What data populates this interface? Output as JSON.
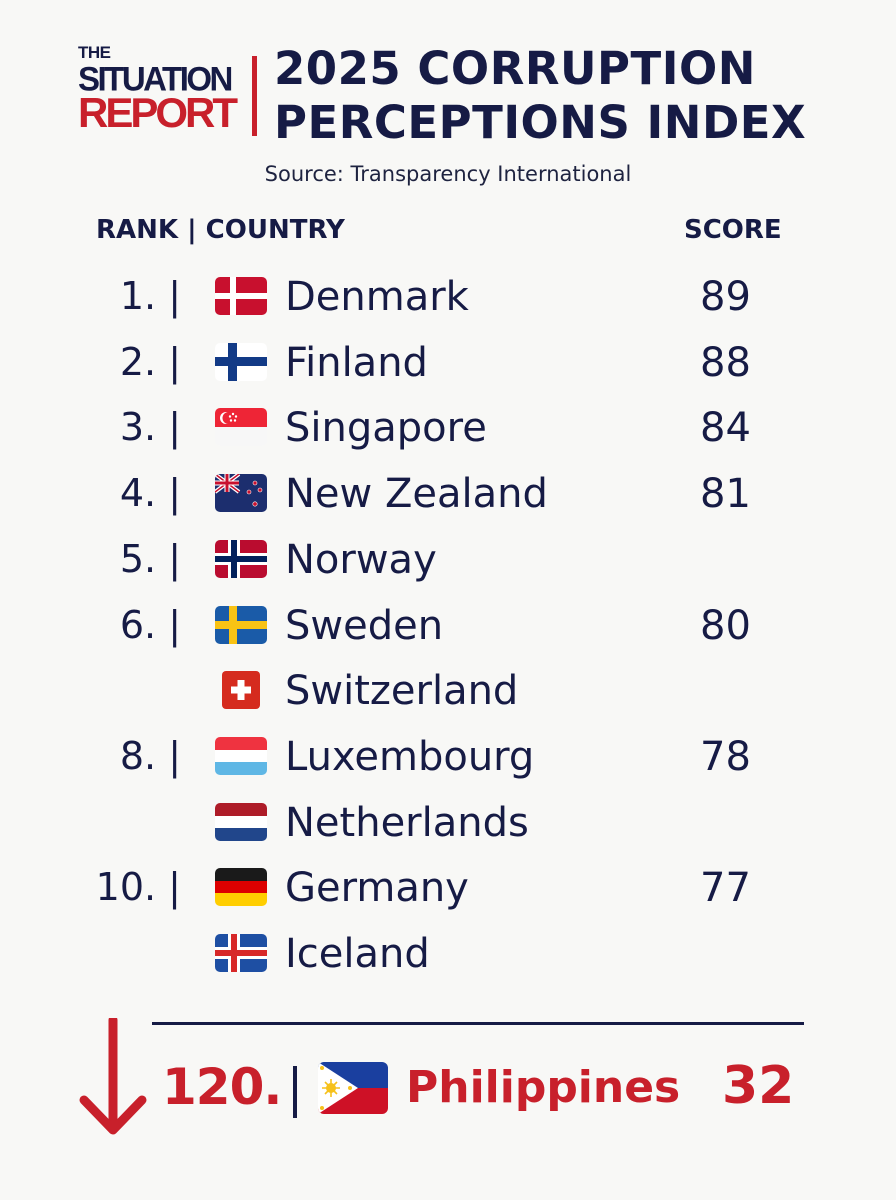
{
  "brand": {
    "line1": "THE",
    "line2": "SITUATION",
    "line3": "REPORT"
  },
  "title": {
    "line1": "2025 CORRUPTION",
    "line2": "PERCEPTIONS INDEX"
  },
  "source": "Source: Transparency International",
  "headers": {
    "left": "RANK | COUNTRY",
    "right": "SCORE"
  },
  "colors": {
    "navy": "#161b45",
    "red": "#c8202b",
    "background": "#f8f8f6"
  },
  "chart_data": {
    "type": "table",
    "columns": [
      "RANK",
      "COUNTRY",
      "SCORE"
    ],
    "rows": [
      {
        "rank": "1. |",
        "country": "Denmark",
        "flag": "flag-denmark",
        "score": "89"
      },
      {
        "rank": "2. |",
        "country": "Finland",
        "flag": "flag-finland",
        "score": "88"
      },
      {
        "rank": "3. |",
        "country": "Singapore",
        "flag": "flag-singapore",
        "score": "84"
      },
      {
        "rank": "4. |",
        "country": "New Zealand",
        "flag": "flag-new-zealand",
        "score": "81"
      },
      {
        "rank": "5. |",
        "country": "Norway",
        "flag": "flag-norway",
        "score": ""
      },
      {
        "rank": "6. |",
        "country": "Sweden",
        "flag": "flag-sweden",
        "score": "80"
      },
      {
        "rank": "",
        "country": "Switzerland",
        "flag": "flag-switzerland",
        "score": ""
      },
      {
        "rank": "8. |",
        "country": "Luxembourg",
        "flag": "flag-luxembourg",
        "score": "78"
      },
      {
        "rank": "",
        "country": "Netherlands",
        "flag": "flag-netherlands",
        "score": ""
      },
      {
        "rank": "10. |",
        "country": "Germany",
        "flag": "flag-germany",
        "score": "77"
      },
      {
        "rank": "",
        "country": "Iceland",
        "flag": "flag-iceland",
        "score": ""
      }
    ],
    "highlight": {
      "rank": "120.",
      "country": "Philippines",
      "flag": "flag-philippines",
      "score": "32"
    }
  }
}
